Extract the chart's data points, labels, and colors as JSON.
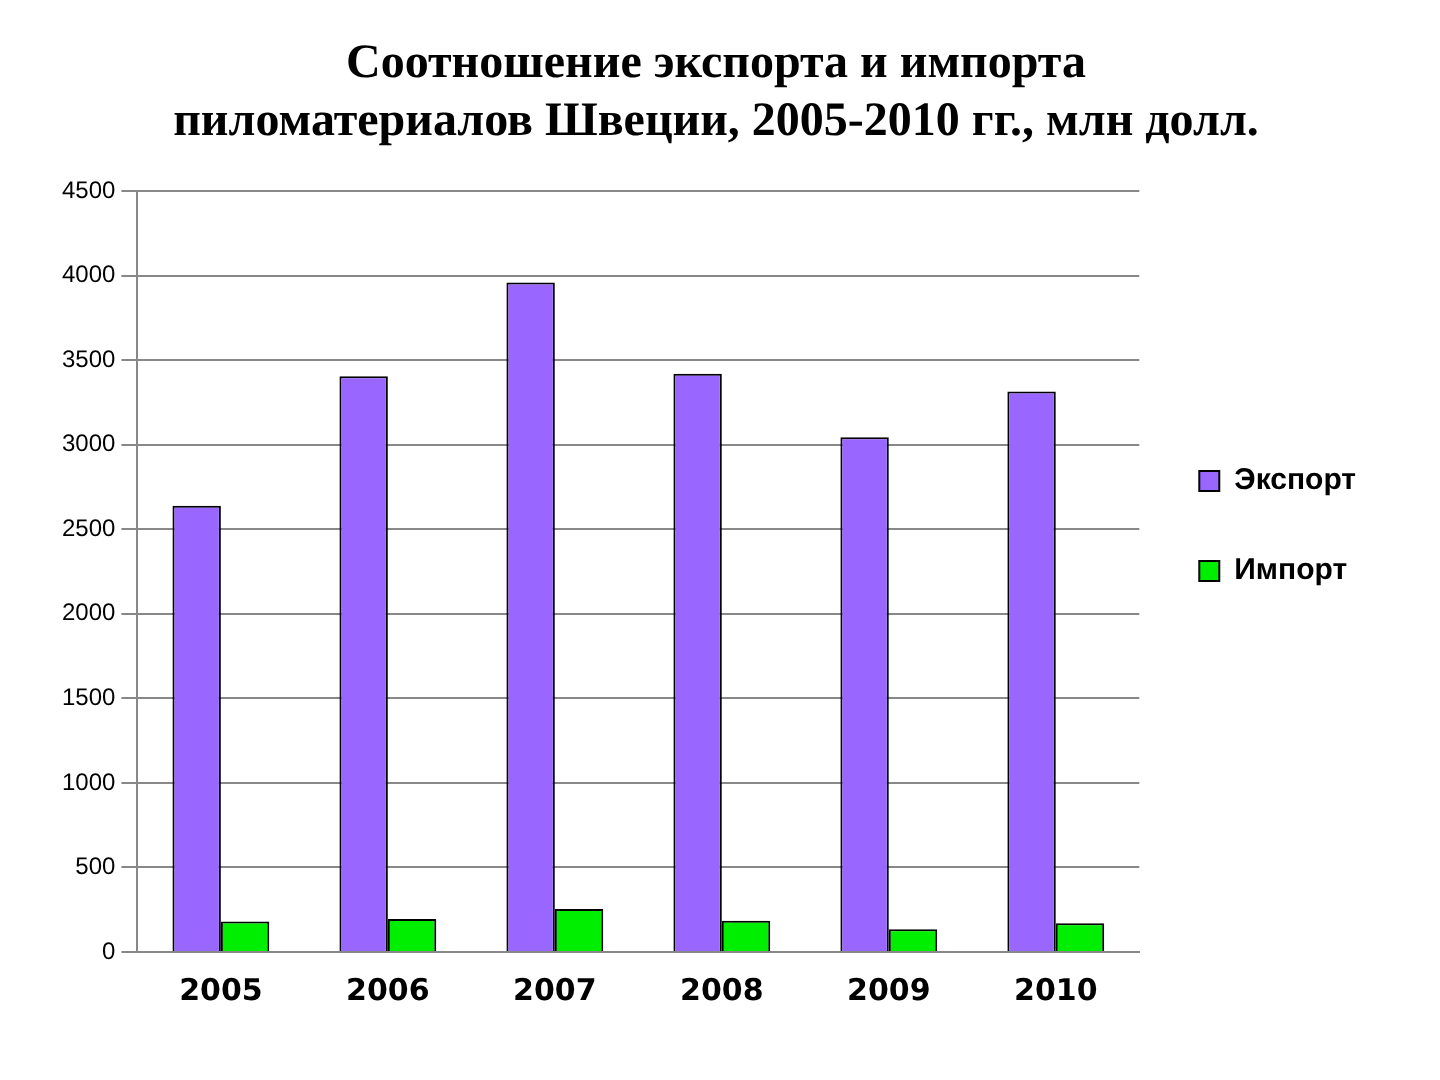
{
  "chart_data": {
    "type": "bar",
    "title": "Соотношение экспорта и импорта пиломатериалов Швеции, 2005-2010 гг., млн долл.",
    "categories": [
      "2005",
      "2006",
      "2007",
      "2008",
      "2009",
      "2010"
    ],
    "series": [
      {
        "name": "Экспорт",
        "color": "#9966ff",
        "values": [
          2640,
          3405,
          3960,
          3420,
          3045,
          3315
        ]
      },
      {
        "name": "Импорт",
        "color": "#00ee00",
        "values": [
          180,
          195,
          255,
          185,
          135,
          170
        ]
      }
    ],
    "ylim": [
      0,
      4500
    ],
    "yticks": [
      0,
      500,
      1000,
      1500,
      2000,
      2500,
      3000,
      3500,
      4000,
      4500
    ],
    "grid": "y",
    "legend": "right"
  }
}
